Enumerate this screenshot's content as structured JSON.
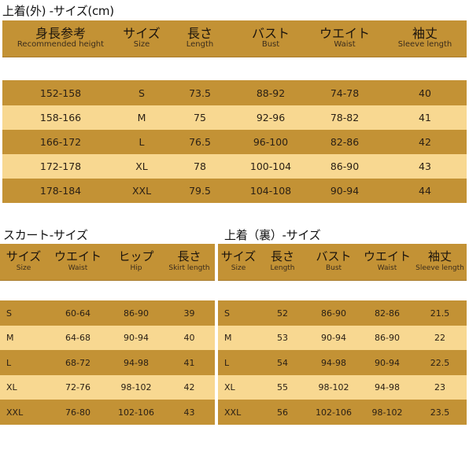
{
  "outer": {
    "title": "上着(外) -サイズ(cm)",
    "headers": [
      {
        "jp": "身長参考",
        "en": "Recommended height"
      },
      {
        "jp": "サイズ",
        "en": "Size"
      },
      {
        "jp": "長さ",
        "en": "Length"
      },
      {
        "jp": "バスト",
        "en": "Bust"
      },
      {
        "jp": "ウエイト",
        "en": "Waist"
      },
      {
        "jp": "袖丈",
        "en": "Sleeve length"
      }
    ],
    "rows": [
      [
        "152-158",
        "S",
        "73.5",
        "88-92",
        "74-78",
        "40"
      ],
      [
        "158-166",
        "M",
        "75",
        "92-96",
        "78-82",
        "41"
      ],
      [
        "166-172",
        "L",
        "76.5",
        "96-100",
        "82-86",
        "42"
      ],
      [
        "172-178",
        "XL",
        "78",
        "100-104",
        "86-90",
        "43"
      ],
      [
        "178-184",
        "XXL",
        "79.5",
        "104-108",
        "90-94",
        "44"
      ]
    ]
  },
  "skirt": {
    "title": "スカート-サイズ",
    "headers": [
      {
        "jp": "サイズ",
        "en": "Size"
      },
      {
        "jp": "ウエイト",
        "en": "Waist"
      },
      {
        "jp": "ヒップ",
        "en": "Hip"
      },
      {
        "jp": "長さ",
        "en": "Skirt length"
      }
    ],
    "rows": [
      [
        "S",
        "60-64",
        "86-90",
        "39"
      ],
      [
        "M",
        "64-68",
        "90-94",
        "40"
      ],
      [
        "L",
        "68-72",
        "94-98",
        "41"
      ],
      [
        "XL",
        "72-76",
        "98-102",
        "42"
      ],
      [
        "XXL",
        "76-80",
        "102-106",
        "43"
      ]
    ]
  },
  "inner": {
    "title": "上着（裏）-サイズ",
    "headers": [
      {
        "jp": "サイズ",
        "en": "Size"
      },
      {
        "jp": "長さ",
        "en": "Length"
      },
      {
        "jp": "バスト",
        "en": "Bust"
      },
      {
        "jp": "ウエイト",
        "en": "Waist"
      },
      {
        "jp": "袖丈",
        "en": "Sleeve length"
      }
    ],
    "rows": [
      [
        "S",
        "52",
        "86-90",
        "82-86",
        "21.5"
      ],
      [
        "M",
        "53",
        "90-94",
        "86-90",
        "22"
      ],
      [
        "L",
        "54",
        "94-98",
        "90-94",
        "22.5"
      ],
      [
        "XL",
        "55",
        "98-102",
        "94-98",
        "23"
      ],
      [
        "XXL",
        "56",
        "102-106",
        "98-102",
        "23.5"
      ]
    ]
  }
}
